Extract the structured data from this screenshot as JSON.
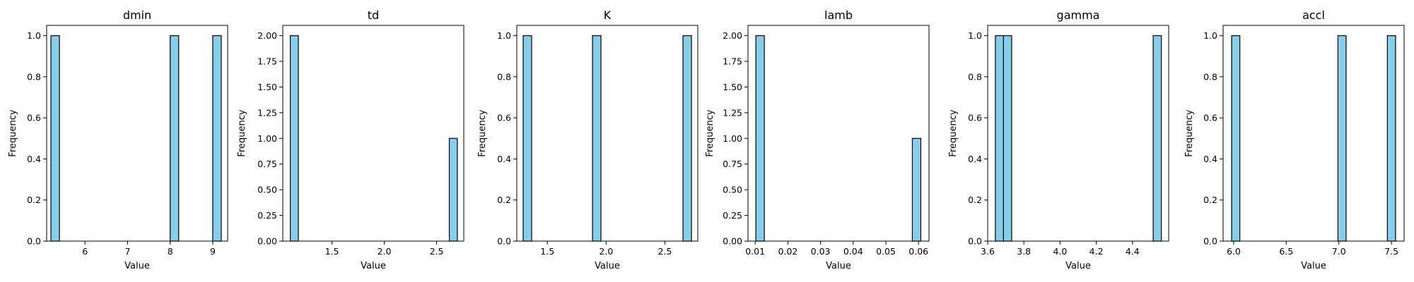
{
  "figure": {
    "bar_color": "#87ceeb",
    "edge_color": "#000000"
  },
  "chart_data": [
    {
      "type": "bar",
      "title": "dmin",
      "xlabel": "Value",
      "ylabel": "Frequency",
      "xlim": [
        5.1,
        9.35
      ],
      "ylim": [
        0,
        1.05
      ],
      "xticks": [
        6,
        7,
        8,
        9
      ],
      "yticks": [
        0.0,
        0.2,
        0.4,
        0.6,
        0.8,
        1.0
      ],
      "ytick_labels": [
        "0.0",
        "0.2",
        "0.4",
        "0.6",
        "0.8",
        "1.0"
      ],
      "bin_width": 0.2,
      "bars": [
        {
          "x": 5.3,
          "value": 1
        },
        {
          "x": 8.1,
          "value": 1
        },
        {
          "x": 9.1,
          "value": 1
        }
      ]
    },
    {
      "type": "bar",
      "title": "td",
      "xlabel": "Value",
      "ylabel": "Frequency",
      "xlim": [
        1.03,
        2.76
      ],
      "ylim": [
        0,
        2.1
      ],
      "xticks": [
        1.5,
        2.0,
        2.5
      ],
      "xtick_labels": [
        "1.5",
        "2.0",
        "2.5"
      ],
      "yticks": [
        0.0,
        0.25,
        0.5,
        0.75,
        1.0,
        1.25,
        1.5,
        1.75,
        2.0
      ],
      "ytick_labels": [
        "0.00",
        "0.25",
        "0.50",
        "0.75",
        "1.00",
        "1.25",
        "1.50",
        "1.75",
        "2.00"
      ],
      "bin_width": 0.077,
      "bars": [
        {
          "x": 1.14,
          "value": 2
        },
        {
          "x": 2.66,
          "value": 1
        }
      ]
    },
    {
      "type": "bar",
      "title": "K",
      "xlabel": "Value",
      "ylabel": "Frequency",
      "xlim": [
        1.24,
        2.78
      ],
      "ylim": [
        0,
        1.05
      ],
      "xticks": [
        1.5,
        2.0,
        2.5
      ],
      "xtick_labels": [
        "1.5",
        "2.0",
        "2.5"
      ],
      "yticks": [
        0.0,
        0.2,
        0.4,
        0.6,
        0.8,
        1.0
      ],
      "ytick_labels": [
        "0.0",
        "0.2",
        "0.4",
        "0.6",
        "0.8",
        "1.0"
      ],
      "bin_width": 0.072,
      "bars": [
        {
          "x": 1.33,
          "value": 1
        },
        {
          "x": 1.92,
          "value": 1
        },
        {
          "x": 2.69,
          "value": 1
        }
      ]
    },
    {
      "type": "bar",
      "title": "lamb",
      "xlabel": "Value",
      "ylabel": "Frequency",
      "xlim": [
        0.0078,
        0.0632
      ],
      "ylim": [
        0,
        2.1
      ],
      "xticks": [
        0.01,
        0.02,
        0.03,
        0.04,
        0.05,
        0.06
      ],
      "xtick_labels": [
        "0.01",
        "0.02",
        "0.03",
        "0.04",
        "0.05",
        "0.06"
      ],
      "yticks": [
        0.0,
        0.25,
        0.5,
        0.75,
        1.0,
        1.25,
        1.5,
        1.75,
        2.0
      ],
      "ytick_labels": [
        "0.00",
        "0.25",
        "0.50",
        "0.75",
        "1.00",
        "1.25",
        "1.50",
        "1.75",
        "2.00"
      ],
      "bin_width": 0.0026,
      "bars": [
        {
          "x": 0.0115,
          "value": 2
        },
        {
          "x": 0.0594,
          "value": 1
        }
      ]
    },
    {
      "type": "bar",
      "title": "gamma",
      "xlabel": "Value",
      "ylabel": "Frequency",
      "xlim": [
        3.6,
        4.6
      ],
      "ylim": [
        0,
        1.05
      ],
      "xticks": [
        3.6,
        3.8,
        4.0,
        4.2,
        4.4
      ],
      "xtick_labels": [
        "3.6",
        "3.8",
        "4.0",
        "4.2",
        "4.4"
      ],
      "yticks": [
        0.0,
        0.2,
        0.4,
        0.6,
        0.8,
        1.0
      ],
      "ytick_labels": [
        "0.0",
        "0.2",
        "0.4",
        "0.6",
        "0.8",
        "1.0"
      ],
      "bin_width": 0.0452,
      "bars": [
        {
          "x": 3.665,
          "value": 1
        },
        {
          "x": 3.71,
          "value": 1
        },
        {
          "x": 4.537,
          "value": 1
        }
      ]
    },
    {
      "type": "bar",
      "title": "accl",
      "xlabel": "Value",
      "ylabel": "Frequency",
      "xlim": [
        5.9,
        7.62
      ],
      "ylim": [
        0,
        1.05
      ],
      "xticks": [
        6.0,
        6.5,
        7.0,
        7.5
      ],
      "xtick_labels": [
        "6.0",
        "6.5",
        "7.0",
        "7.5"
      ],
      "yticks": [
        0.0,
        0.2,
        0.4,
        0.6,
        0.8,
        1.0
      ],
      "ytick_labels": [
        "0.0",
        "0.2",
        "0.4",
        "0.6",
        "0.8",
        "1.0"
      ],
      "bin_width": 0.078,
      "bars": [
        {
          "x": 6.02,
          "value": 1
        },
        {
          "x": 7.03,
          "value": 1
        },
        {
          "x": 7.5,
          "value": 1
        }
      ]
    }
  ]
}
